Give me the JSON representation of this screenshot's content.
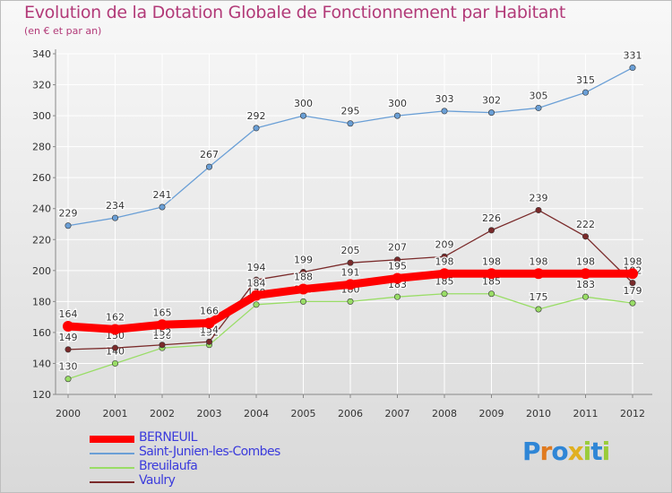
{
  "header": {
    "title": "Evolution de la Dotation Globale de Fonctionnement par Habitant",
    "subtitle": "(en € et par an)"
  },
  "logo": {
    "text": "Proxiti",
    "letters": [
      "P",
      "r",
      "o",
      "x",
      "i",
      "t",
      "i"
    ]
  },
  "colors": {
    "title": "#b23a78",
    "legend_text": "#3b3bdc",
    "axis_text": "#333333",
    "grid": "#ffffff"
  },
  "chart_data": {
    "type": "line",
    "title": "Evolution de la Dotation Globale de Fonctionnement par Habitant",
    "subtitle": "(en € et par an)",
    "x": [
      "2000",
      "2001",
      "2002",
      "2003",
      "2004",
      "2005",
      "2006",
      "2007",
      "2008",
      "2009",
      "2010",
      "2011",
      "2012"
    ],
    "ylim": [
      120,
      340
    ],
    "yticks": [
      120,
      140,
      160,
      180,
      200,
      220,
      240,
      260,
      280,
      300,
      320,
      340
    ],
    "grid": true,
    "legend_position": "bottom-left",
    "series": [
      {
        "name": "BERNEUIL",
        "color": "#ff0000",
        "values": [
          164,
          162,
          165,
          166,
          184,
          188,
          191,
          195,
          198,
          198,
          198,
          198,
          198
        ]
      },
      {
        "name": "Saint-Junien-les-Combes",
        "color": "#6a9fd6",
        "values": [
          229,
          234,
          241,
          267,
          292,
          300,
          295,
          300,
          303,
          302,
          305,
          315,
          331
        ]
      },
      {
        "name": "Breuilaufa",
        "color": "#99dd66",
        "values": [
          130,
          140,
          150,
          152,
          178,
          180,
          180,
          183,
          185,
          185,
          175,
          183,
          179
        ]
      },
      {
        "name": "Vaulry",
        "color": "#7a2a2a",
        "values": [
          149,
          150,
          152,
          154,
          194,
          199,
          205,
          207,
          209,
          226,
          239,
          222,
          192
        ]
      }
    ]
  }
}
